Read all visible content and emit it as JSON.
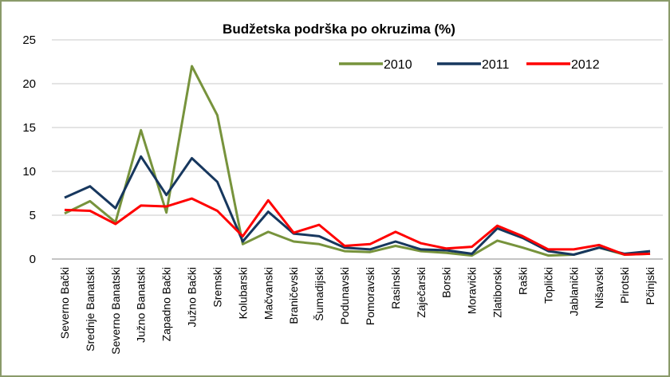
{
  "chart_data": {
    "type": "line",
    "title": "Budžetska podrška po okruzima (%)",
    "categories": [
      "Severno Bački",
      "Srednje Banatski",
      "Severno Banatski",
      "Južno Banatski",
      "Zapadno Bački",
      "Južno Bački",
      "Sremski",
      "Kolubarski",
      "Mačvanski",
      "Braničevski",
      "Šumadijski",
      "Podunavski",
      "Pomoravski",
      "Rasinski",
      "Zaječarski",
      "Borski",
      "Moravički",
      "Zlatiborski",
      "Raški",
      "Toplički",
      "Jablanički",
      "Nišavski",
      "Pirotski",
      "Pčinjski"
    ],
    "series": [
      {
        "name": "2010",
        "color": "#77933c",
        "values": [
          5.2,
          6.6,
          4.2,
          14.7,
          5.3,
          22,
          16.4,
          1.7,
          3.1,
          2.0,
          1.7,
          0.9,
          0.8,
          1.5,
          0.9,
          0.7,
          0.4,
          2.1,
          1.3,
          0.4,
          0.5,
          1.3,
          0.5,
          0.6
        ]
      },
      {
        "name": "2011",
        "color": "#17375e",
        "values": [
          7.0,
          8.3,
          5.8,
          11.7,
          7.3,
          11.5,
          8.8,
          2.0,
          5.4,
          2.9,
          2.6,
          1.3,
          1.1,
          2.0,
          1.1,
          1.0,
          0.6,
          3.5,
          2.4,
          0.9,
          0.5,
          1.3,
          0.6,
          0.9
        ]
      },
      {
        "name": "2012",
        "color": "#ff0000",
        "values": [
          5.6,
          5.5,
          4.0,
          6.1,
          6.0,
          6.9,
          5.5,
          2.6,
          6.7,
          3.0,
          3.9,
          1.5,
          1.7,
          3.1,
          1.8,
          1.2,
          1.4,
          3.8,
          2.6,
          1.1,
          1.1,
          1.6,
          0.5,
          0.6
        ]
      }
    ],
    "ylim": [
      0,
      25
    ],
    "yticks": [
      0,
      5,
      10,
      15,
      20,
      25
    ],
    "grid": true
  }
}
